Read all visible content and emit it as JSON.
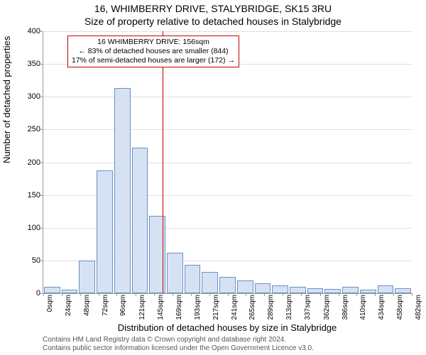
{
  "title_line1": "16, WHIMBERRY DRIVE, STALYBRIDGE, SK15 3RU",
  "title_line2": "Size of property relative to detached houses in Stalybridge",
  "ylabel": "Number of detached properties",
  "xlabel": "Distribution of detached houses by size in Stalybridge",
  "caption_line1": "Contains HM Land Registry data © Crown copyright and database right 2024.",
  "caption_line2": "Contains public sector information licensed under the Open Government Licence v3.0.",
  "chart": {
    "type": "histogram",
    "ylim": [
      0,
      400
    ],
    "ytick_step": 50,
    "background_color": "#ffffff",
    "grid_color": "#e0e0e0",
    "axis_color": "#999999",
    "bar_color": "#d6e2f3",
    "bar_border_color": "#6b90c7",
    "bar_width": 0.92,
    "vline_color": "#cc0000",
    "vline_x": 156,
    "x_tick_unit": "sqm",
    "x_ticks": [
      0,
      24,
      48,
      72,
      96,
      121,
      145,
      169,
      193,
      217,
      241,
      265,
      289,
      313,
      337,
      362,
      386,
      410,
      434,
      458,
      482
    ],
    "bars": [
      10,
      5,
      50,
      188,
      313,
      222,
      118,
      62,
      43,
      32,
      25,
      20,
      15,
      12,
      10,
      8,
      6,
      10,
      5,
      12,
      8
    ]
  },
  "annotation": {
    "border_color": "#cc0000",
    "line1": "16 WHIMBERRY DRIVE: 156sqm",
    "line2": "← 83% of detached houses are smaller (844)",
    "line3": "17% of semi-detached houses are larger (172) →"
  },
  "fonts": {
    "title_fontsize": 14,
    "label_fontsize": 13,
    "tick_fontsize": 11,
    "annot_fontsize": 10.5,
    "caption_fontsize": 10
  }
}
